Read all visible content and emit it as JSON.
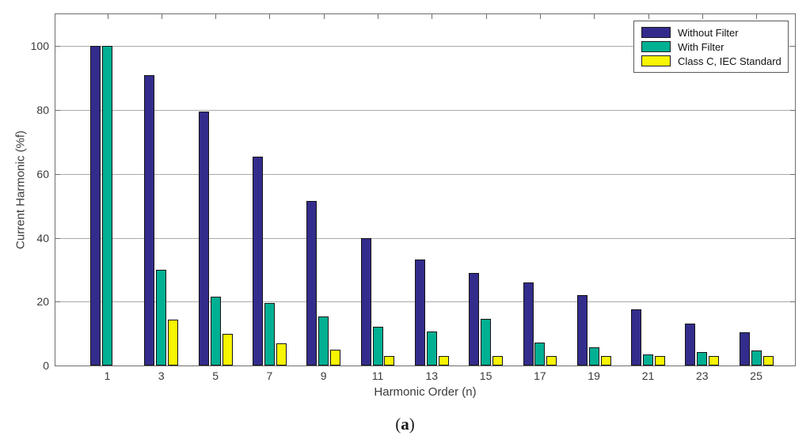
{
  "caption": {
    "open": "(",
    "letter": "a",
    "close": ")"
  },
  "chart_data": {
    "type": "bar",
    "title": "",
    "xlabel": "Harmonic Order (n)",
    "ylabel": "Current Harmonic (%f)",
    "categories": [
      1,
      3,
      5,
      7,
      9,
      11,
      13,
      15,
      17,
      19,
      21,
      23,
      25
    ],
    "series": [
      {
        "name": "Without Filter",
        "color": "#332c8c",
        "values": [
          100,
          91,
          79.5,
          65.5,
          51.5,
          40,
          33.2,
          29,
          26,
          22,
          17.5,
          13.2,
          10.3
        ]
      },
      {
        "name": "With Filter",
        "color": "#00b093",
        "values": [
          100,
          30,
          21.5,
          19.5,
          15.4,
          12.2,
          10.6,
          14.5,
          7.2,
          5.8,
          3.5,
          4.1,
          4.6
        ]
      },
      {
        "name": "Class C, IEC Standard",
        "color": "#f8f500",
        "values": [
          null,
          14.4,
          10,
          7,
          5,
          3,
          3,
          3,
          3,
          3,
          3,
          3,
          3
        ]
      }
    ],
    "ylim": [
      0,
      110
    ],
    "yticks": [
      0,
      20,
      40,
      60,
      80,
      100
    ],
    "grid": "horizontal",
    "legend_position": "top-right",
    "axis_color": "#6e6e6e",
    "gridline_color": "#aaaaaa"
  }
}
